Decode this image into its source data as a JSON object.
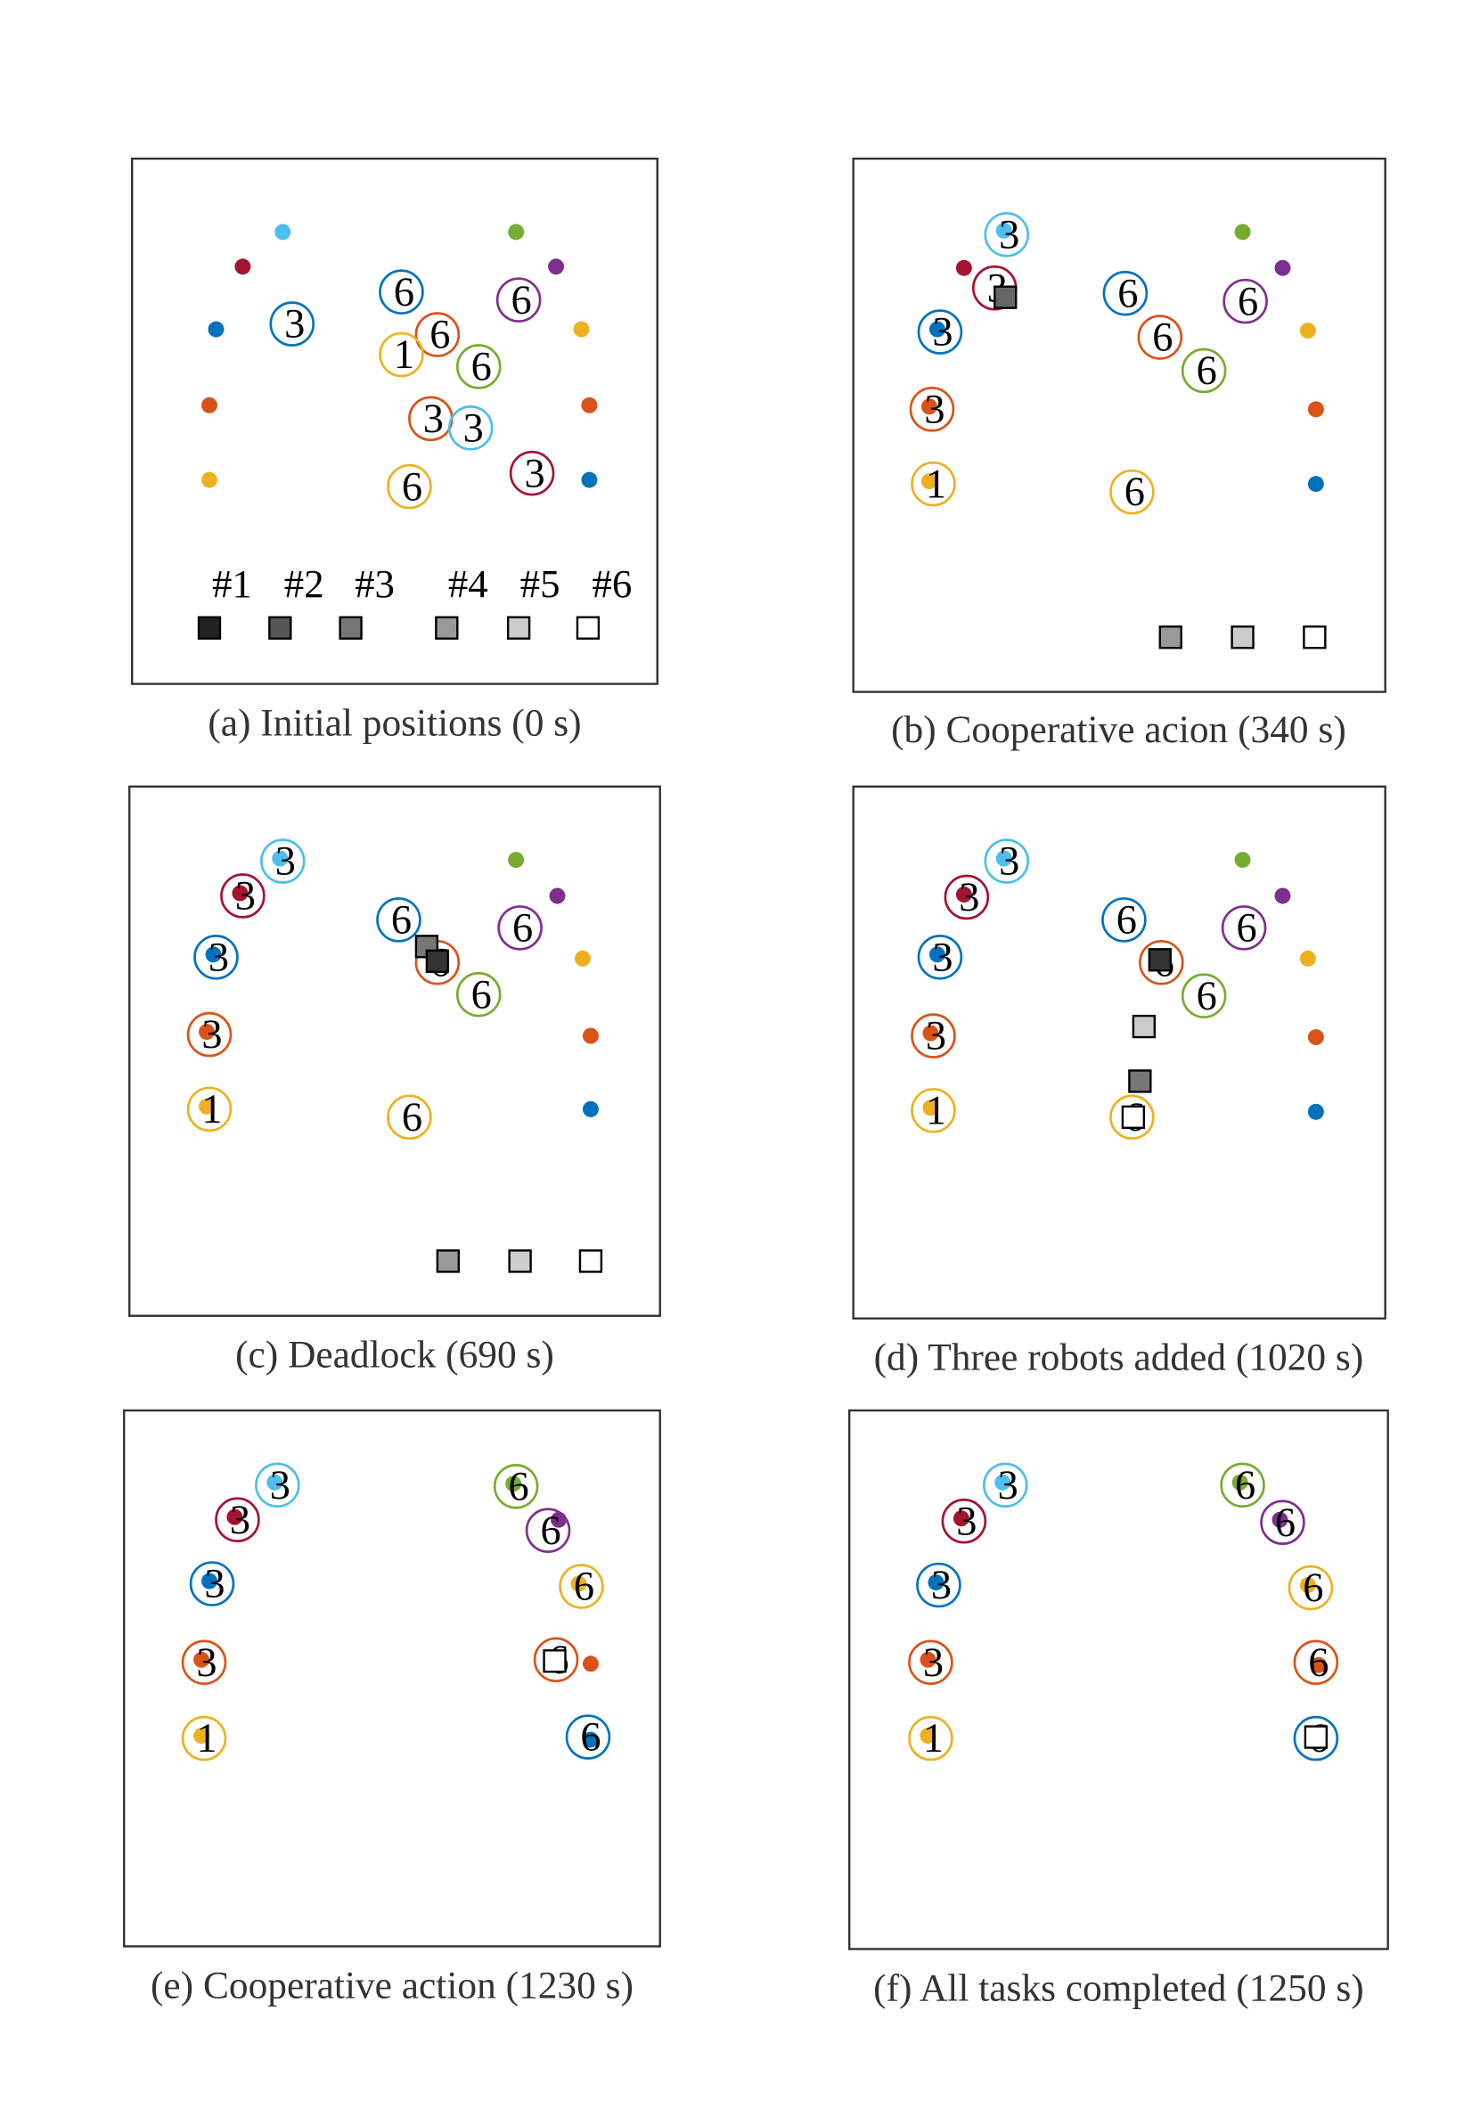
{
  "panels": [
    {
      "caption": "(a) Initial positions (0 s)",
      "robot_labels": [
        "6",
        "3",
        "6",
        "1",
        "6",
        "6",
        "3",
        "3",
        "3",
        "6"
      ],
      "task_labels": [
        "#1",
        "#2",
        "#3",
        "#4",
        "#5",
        "#6"
      ]
    },
    {
      "caption": "(b) Cooperative acion (340 s)",
      "robot_labels": [
        "3",
        "3",
        "3",
        "3",
        "1",
        "6",
        "6",
        "6",
        "6",
        "6"
      ]
    },
    {
      "caption": "(c) Deadlock (690 s)",
      "robot_labels": [
        "3",
        "3",
        "3",
        "3",
        "1",
        "6",
        "6",
        "6",
        "6",
        "6"
      ]
    },
    {
      "caption": "(d) Three robots added (1020 s)",
      "robot_labels": [
        "3",
        "3",
        "3",
        "3",
        "1",
        "6",
        "6",
        "6",
        "6",
        "6"
      ]
    },
    {
      "caption": "(e) Cooperative action (1230 s)",
      "robot_labels": [
        "3",
        "3",
        "3",
        "3",
        "1",
        "6",
        "6",
        "6",
        "6",
        "6"
      ]
    },
    {
      "caption": "(f) All tasks completed (1250 s)",
      "robot_labels": [
        "3",
        "3",
        "3",
        "3",
        "1",
        "6",
        "6",
        "6",
        "6",
        "6"
      ]
    }
  ]
}
